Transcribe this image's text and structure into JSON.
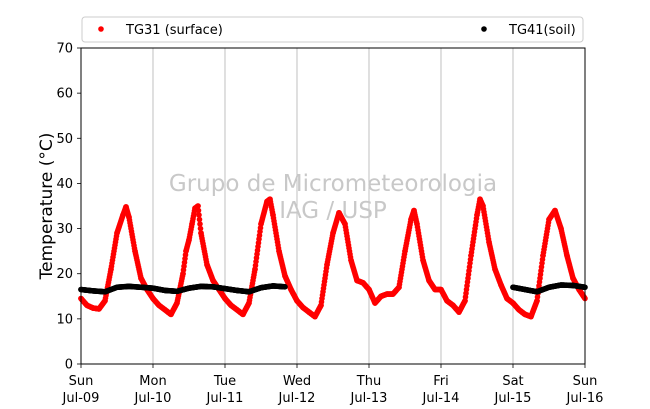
{
  "chart_data": {
    "type": "scatter",
    "ylabel": "Temperature (°C)",
    "ylim": [
      0,
      70
    ],
    "yticks": [
      0,
      10,
      20,
      30,
      40,
      50,
      60,
      70
    ],
    "xlim": [
      "2023-07-09",
      "2023-07-16"
    ],
    "xticks": [
      {
        "date": "2023-07-09",
        "weekday": "Sun",
        "day": "Jul-09"
      },
      {
        "date": "2023-07-10",
        "weekday": "Mon",
        "day": "Jul-10"
      },
      {
        "date": "2023-07-11",
        "weekday": "Tue",
        "day": "Jul-11"
      },
      {
        "date": "2023-07-12",
        "weekday": "Wed",
        "day": "Jul-12"
      },
      {
        "date": "2023-07-13",
        "weekday": "Thu",
        "day": "Jul-13"
      },
      {
        "date": "2023-07-14",
        "weekday": "Fri",
        "day": "Jul-14"
      },
      {
        "date": "2023-07-15",
        "weekday": "Sat",
        "day": "Jul-15"
      },
      {
        "date": "2023-07-16",
        "weekday": "Sun",
        "day": "Jul-16"
      }
    ],
    "grid": "vertical",
    "legend_placement": "top",
    "watermark": [
      "Grupo de Micrometeorologia",
      "IAG / USP"
    ],
    "series": [
      {
        "name": "TG31 (surface)",
        "color": "#ff0000",
        "points": [
          [
            "2023-07-09 00:00",
            14.5
          ],
          [
            "2023-07-09 02:00",
            13.0
          ],
          [
            "2023-07-09 04:00",
            12.4
          ],
          [
            "2023-07-09 06:00",
            12.2
          ],
          [
            "2023-07-09 08:00",
            14.0
          ],
          [
            "2023-07-09 10:00",
            21.0
          ],
          [
            "2023-07-09 12:00",
            29.0
          ],
          [
            "2023-07-09 14:00",
            33.0
          ],
          [
            "2023-07-09 15:00",
            34.8
          ],
          [
            "2023-07-09 16:00",
            32.5
          ],
          [
            "2023-07-09 18:00",
            25.0
          ],
          [
            "2023-07-09 20:00",
            19.0
          ],
          [
            "2023-07-09 22:00",
            16.5
          ],
          [
            "2023-07-10 00:00",
            14.5
          ],
          [
            "2023-07-10 02:00",
            13.0
          ],
          [
            "2023-07-10 04:00",
            12.0
          ],
          [
            "2023-07-10 06:00",
            11.0
          ],
          [
            "2023-07-10 08:00",
            13.5
          ],
          [
            "2023-07-10 10:00",
            20.0
          ],
          [
            "2023-07-10 11:00",
            25.0
          ],
          [
            "2023-07-10 12:00",
            27.5
          ],
          [
            "2023-07-10 13:00",
            31.0
          ],
          [
            "2023-07-10 14:00",
            34.5
          ],
          [
            "2023-07-10 15:00",
            35.0
          ],
          [
            "2023-07-10 16:00",
            29.0
          ],
          [
            "2023-07-10 18:00",
            22.0
          ],
          [
            "2023-07-10 20:00",
            18.5
          ],
          [
            "2023-07-10 22:00",
            16.5
          ],
          [
            "2023-07-11 00:00",
            14.5
          ],
          [
            "2023-07-11 02:00",
            13.0
          ],
          [
            "2023-07-11 04:00",
            12.0
          ],
          [
            "2023-07-11 06:00",
            11.0
          ],
          [
            "2023-07-11 08:00",
            13.5
          ],
          [
            "2023-07-11 10:00",
            21.0
          ],
          [
            "2023-07-11 12:00",
            31.0
          ],
          [
            "2023-07-11 14:00",
            36.0
          ],
          [
            "2023-07-11 15:00",
            36.5
          ],
          [
            "2023-07-11 16:00",
            33.0
          ],
          [
            "2023-07-11 18:00",
            25.0
          ],
          [
            "2023-07-11 20:00",
            19.5
          ],
          [
            "2023-07-11 22:00",
            16.5
          ],
          [
            "2023-07-12 00:00",
            14.0
          ],
          [
            "2023-07-12 02:00",
            12.5
          ],
          [
            "2023-07-12 04:00",
            11.5
          ],
          [
            "2023-07-12 06:00",
            10.5
          ],
          [
            "2023-07-12 08:00",
            13.0
          ],
          [
            "2023-07-12 10:00",
            22.0
          ],
          [
            "2023-07-12 12:00",
            29.0
          ],
          [
            "2023-07-12 14:00",
            33.5
          ],
          [
            "2023-07-12 16:00",
            31.0
          ],
          [
            "2023-07-12 18:00",
            23.0
          ],
          [
            "2023-07-12 20:00",
            18.5
          ],
          [
            "2023-07-12 22:00",
            18.0
          ],
          [
            "2023-07-13 00:00",
            16.5
          ],
          [
            "2023-07-13 02:00",
            13.5
          ],
          [
            "2023-07-13 04:00",
            15.0
          ],
          [
            "2023-07-13 06:00",
            15.5
          ],
          [
            "2023-07-13 08:00",
            15.5
          ],
          [
            "2023-07-13 10:00",
            17.0
          ],
          [
            "2023-07-13 12:00",
            25.0
          ],
          [
            "2023-07-13 14:00",
            32.0
          ],
          [
            "2023-07-13 15:00",
            34.0
          ],
          [
            "2023-07-13 16:00",
            31.0
          ],
          [
            "2023-07-13 18:00",
            23.0
          ],
          [
            "2023-07-13 20:00",
            18.5
          ],
          [
            "2023-07-13 22:00",
            16.5
          ],
          [
            "2023-07-14 00:00",
            16.5
          ],
          [
            "2023-07-14 02:00",
            14.0
          ],
          [
            "2023-07-14 04:00",
            13.0
          ],
          [
            "2023-07-14 06:00",
            11.5
          ],
          [
            "2023-07-14 08:00",
            14.0
          ],
          [
            "2023-07-14 10:00",
            24.0
          ],
          [
            "2023-07-14 12:00",
            33.0
          ],
          [
            "2023-07-14 13:00",
            36.5
          ],
          [
            "2023-07-14 14:00",
            35.0
          ],
          [
            "2023-07-14 16:00",
            27.0
          ],
          [
            "2023-07-14 18:00",
            21.0
          ],
          [
            "2023-07-14 20:00",
            17.5
          ],
          [
            "2023-07-14 22:00",
            14.5
          ],
          [
            "2023-07-15 00:00",
            13.5
          ],
          [
            "2023-07-15 02:00",
            12.0
          ],
          [
            "2023-07-15 04:00",
            11.0
          ],
          [
            "2023-07-15 06:00",
            10.5
          ],
          [
            "2023-07-15 08:00",
            14.0
          ],
          [
            "2023-07-15 10:00",
            24.0
          ],
          [
            "2023-07-15 12:00",
            32.0
          ],
          [
            "2023-07-15 14:00",
            34.0
          ],
          [
            "2023-07-15 16:00",
            30.0
          ],
          [
            "2023-07-15 18:00",
            24.0
          ],
          [
            "2023-07-15 20:00",
            19.0
          ],
          [
            "2023-07-15 22:00",
            16.5
          ],
          [
            "2023-07-16 00:00",
            14.5
          ]
        ]
      },
      {
        "name": "TG41(soil)",
        "color": "#000000",
        "points": [
          [
            "2023-07-09 00:00",
            16.5
          ],
          [
            "2023-07-09 04:00",
            16.2
          ],
          [
            "2023-07-09 08:00",
            16.0
          ],
          [
            "2023-07-09 12:00",
            17.0
          ],
          [
            "2023-07-09 16:00",
            17.2
          ],
          [
            "2023-07-09 20:00",
            17.0
          ],
          [
            "2023-07-10 00:00",
            16.8
          ],
          [
            "2023-07-10 04:00",
            16.3
          ],
          [
            "2023-07-10 08:00",
            16.1
          ],
          [
            "2023-07-10 12:00",
            16.8
          ],
          [
            "2023-07-10 16:00",
            17.2
          ],
          [
            "2023-07-10 20:00",
            17.1
          ],
          [
            "2023-07-11 00:00",
            16.7
          ],
          [
            "2023-07-11 04:00",
            16.3
          ],
          [
            "2023-07-11 08:00",
            16.0
          ],
          [
            "2023-07-11 12:00",
            16.9
          ],
          [
            "2023-07-11 16:00",
            17.3
          ],
          [
            "2023-07-11 20:00",
            17.1
          ],
          [
            "2023-07-15 00:00",
            17.0
          ],
          [
            "2023-07-15 04:00",
            16.5
          ],
          [
            "2023-07-15 08:00",
            16.0
          ],
          [
            "2023-07-15 12:00",
            17.0
          ],
          [
            "2023-07-15 16:00",
            17.5
          ],
          [
            "2023-07-15 20:00",
            17.4
          ],
          [
            "2023-07-16 00:00",
            17.0
          ]
        ]
      }
    ]
  }
}
